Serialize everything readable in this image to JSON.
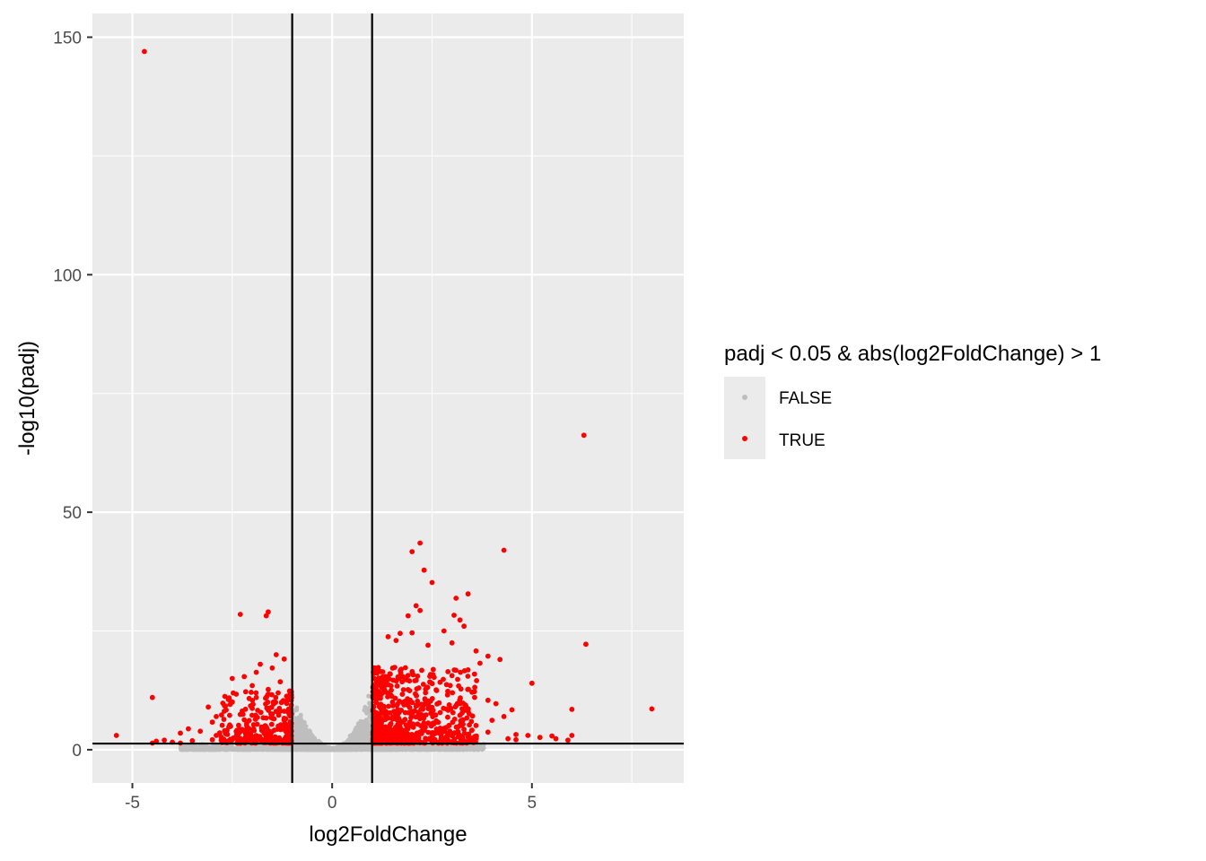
{
  "chart_data": {
    "type": "scatter",
    "title": "",
    "xlabel": "log2FoldChange",
    "ylabel": "-log10(padj)",
    "xlim": [
      -6,
      8.8
    ],
    "ylim": [
      -7,
      155
    ],
    "x_ticks": [
      -5,
      0,
      5
    ],
    "x_tick_labels": [
      "-5",
      "0",
      "5"
    ],
    "y_ticks": [
      0,
      50,
      100,
      150
    ],
    "y_tick_labels": [
      "0",
      "50",
      "100",
      "150"
    ],
    "grid": true,
    "vlines": [
      -1,
      1
    ],
    "hline": 1.3,
    "legend": {
      "title": "padj < 0.05 & abs(log2FoldChange) > 1",
      "placement": "right",
      "entries": [
        {
          "label": "FALSE",
          "color": "#bebebe"
        },
        {
          "label": "TRUE",
          "color": "#ff0000"
        }
      ]
    },
    "colors": {
      "false": "#bebebe",
      "true": "#ff0000",
      "panel": "#ebebeb",
      "grid": "#ffffff"
    },
    "series": [
      {
        "name": "TRUE",
        "points": [
          [
            -4.7,
            147
          ],
          [
            6.3,
            66.2
          ],
          [
            6.35,
            22.2
          ],
          [
            8.0,
            8.6
          ],
          [
            -5.4,
            3.0
          ],
          [
            -4.5,
            11.0
          ],
          [
            4.3,
            42.0
          ],
          [
            2.2,
            43.5
          ],
          [
            2.0,
            41.7
          ],
          [
            2.3,
            37.8
          ],
          [
            2.5,
            35.2
          ],
          [
            3.4,
            32.8
          ],
          [
            3.1,
            31.9
          ],
          [
            2.1,
            30.3
          ],
          [
            2.2,
            29.3
          ],
          [
            1.9,
            28.2
          ],
          [
            3.2,
            27.3
          ],
          [
            3.3,
            26.0
          ],
          [
            2.8,
            25.0
          ],
          [
            2.0,
            24.6
          ],
          [
            1.7,
            24.5
          ],
          [
            1.4,
            23.8
          ],
          [
            1.6,
            23.0
          ],
          [
            2.4,
            22.0
          ],
          [
            3.0,
            22.5
          ],
          [
            3.6,
            20.8
          ],
          [
            3.9,
            19.7
          ],
          [
            4.2,
            19.0
          ],
          [
            3.7,
            18.2
          ],
          [
            3.4,
            16.8
          ],
          [
            3.0,
            15.6
          ],
          [
            2.7,
            14.2
          ],
          [
            3.5,
            12.1
          ],
          [
            3.9,
            10.4
          ],
          [
            4.1,
            9.7
          ],
          [
            4.5,
            8.4
          ],
          [
            4.3,
            7.0
          ],
          [
            4.0,
            6.2
          ],
          [
            3.6,
            5.1
          ],
          [
            3.3,
            4.3
          ],
          [
            3.9,
            3.7
          ],
          [
            4.6,
            3.2
          ],
          [
            4.9,
            3.0
          ],
          [
            4.6,
            2.1
          ],
          [
            4.4,
            2.3
          ],
          [
            5.2,
            2.6
          ],
          [
            5.5,
            2.9
          ],
          [
            5.6,
            2.3
          ],
          [
            5.9,
            2.0
          ],
          [
            6.0,
            3.0
          ],
          [
            6.0,
            8.5
          ],
          [
            5.0,
            14.0
          ],
          [
            3.05,
            28.3
          ],
          [
            -2.3,
            28.5
          ],
          [
            -1.6,
            29.0
          ],
          [
            -1.65,
            28.2
          ],
          [
            -1.4,
            20.0
          ],
          [
            -1.2,
            19.1
          ],
          [
            -1.8,
            18.0
          ],
          [
            -1.5,
            17.2
          ],
          [
            -1.9,
            16.3
          ],
          [
            -2.2,
            15.4
          ],
          [
            -2.5,
            15.0
          ],
          [
            -1.3,
            14.3
          ],
          [
            -2.0,
            13.5
          ],
          [
            -1.6,
            12.7
          ],
          [
            -2.4,
            11.7
          ],
          [
            -1.9,
            11.0
          ],
          [
            -2.6,
            10.6
          ],
          [
            -3.1,
            9.0
          ],
          [
            -2.0,
            8.7
          ],
          [
            -2.7,
            8.1
          ],
          [
            -1.5,
            7.5
          ],
          [
            -2.9,
            7.0
          ],
          [
            -3.6,
            4.4
          ],
          [
            -3.3,
            3.9
          ],
          [
            -3.8,
            3.5
          ],
          [
            -2.9,
            3.0
          ],
          [
            -3.0,
            2.1
          ],
          [
            -3.5,
            1.9
          ],
          [
            -4.2,
            2.0
          ],
          [
            -4.0,
            1.6
          ],
          [
            -4.4,
            1.8
          ],
          [
            -3.8,
            1.4
          ],
          [
            -4.5,
            1.4
          ],
          [
            -3.0,
            5.8
          ],
          [
            -2.2,
            6.3
          ]
        ]
      }
    ]
  }
}
